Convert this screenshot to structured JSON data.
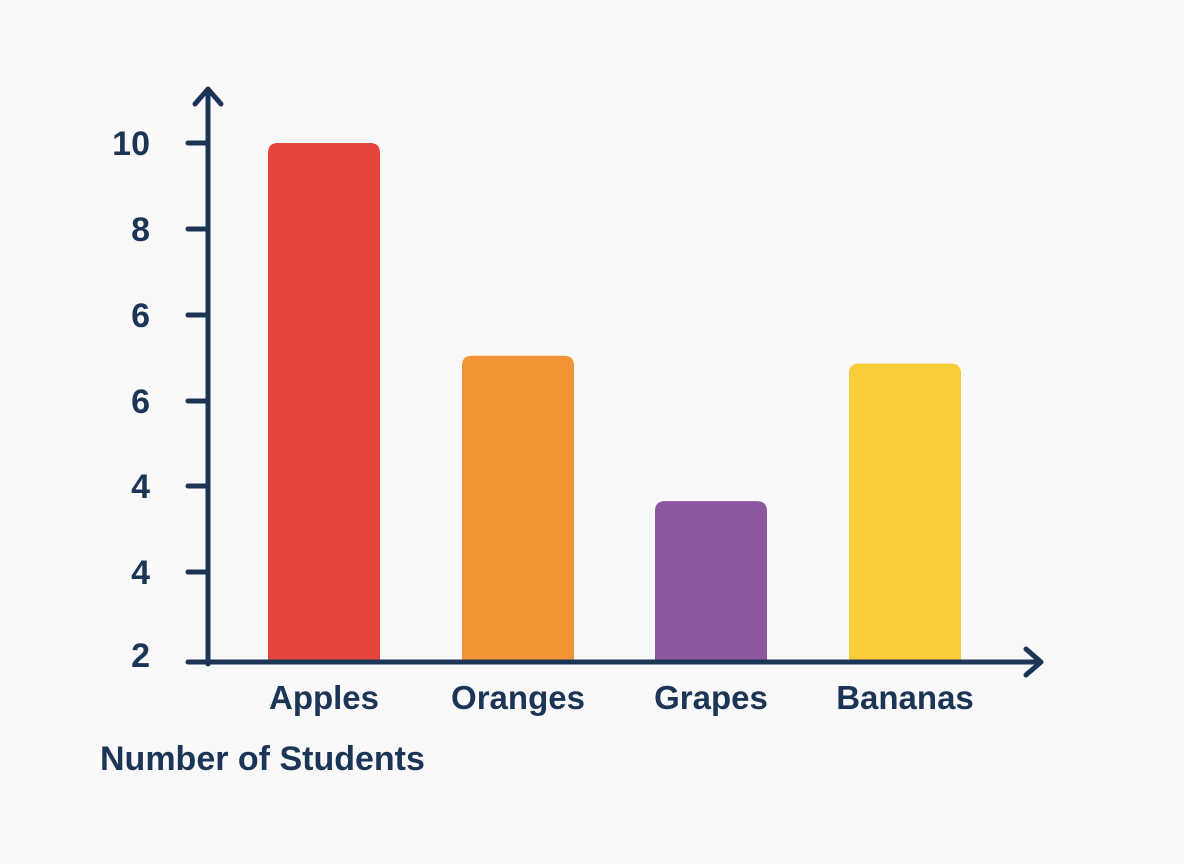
{
  "chart_data": {
    "type": "bar",
    "title": "",
    "xlabel": "Number of Students",
    "ylabel": "",
    "categories": [
      "Apples",
      "Oranges",
      "Grapes",
      "Bananas"
    ],
    "values": [
      10,
      5.9,
      3.1,
      5.75
    ],
    "bar_colors": [
      "#e5453a",
      "#f29435",
      "#8d569e",
      "#f7cd3a"
    ],
    "ytick_labels": [
      "2",
      "4",
      "4",
      "6",
      "6",
      "8",
      "10"
    ],
    "ylim": [
      0,
      11
    ],
    "grid": false,
    "legend": "none",
    "axis_color": "#1b3556"
  }
}
